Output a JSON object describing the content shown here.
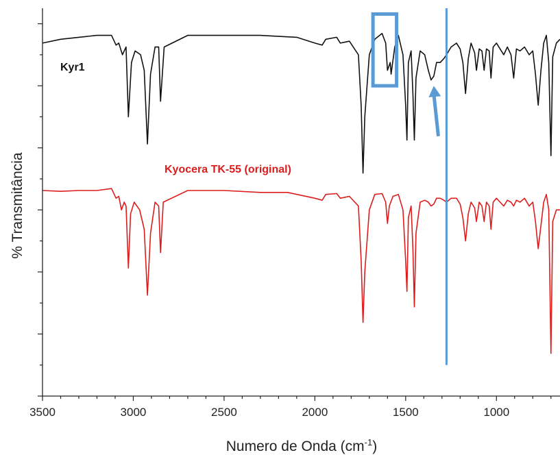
{
  "chart_data": {
    "type": "line",
    "title": "",
    "xlabel": "Numero de Onda (cm",
    "xlabel_sup": "-1",
    "xlabel_tail": ")",
    "ylabel": "% Transmitância",
    "xlim": [
      3500,
      650
    ],
    "x_reversed": true,
    "ylim": [
      0,
      1
    ],
    "y_tick_labels_shown": false,
    "x_ticks": [
      3500,
      3000,
      2500,
      2000,
      1500,
      1000
    ],
    "x_tick_labels": [
      "3500",
      "3000",
      "2500",
      "2000",
      "1500",
      "1000"
    ],
    "grid": false,
    "colors": {
      "kyr1": "#111111",
      "tk55": "#dd1c1c",
      "annotation": "#5b9bd5"
    },
    "series": [
      {
        "name": "Kyr1",
        "color": "#111111",
        "baseline": 0.93,
        "points": [
          [
            3500,
            0.91
          ],
          [
            3400,
            0.92
          ],
          [
            3300,
            0.925
          ],
          [
            3200,
            0.93
          ],
          [
            3120,
            0.93
          ],
          [
            3095,
            0.905
          ],
          [
            3080,
            0.91
          ],
          [
            3060,
            0.88
          ],
          [
            3040,
            0.9
          ],
          [
            3027,
            0.72
          ],
          [
            3010,
            0.86
          ],
          [
            2990,
            0.89
          ],
          [
            2960,
            0.88
          ],
          [
            2940,
            0.84
          ],
          [
            2922,
            0.65
          ],
          [
            2905,
            0.83
          ],
          [
            2880,
            0.9
          ],
          [
            2860,
            0.9
          ],
          [
            2850,
            0.76
          ],
          [
            2830,
            0.9
          ],
          [
            2700,
            0.93
          ],
          [
            2500,
            0.93
          ],
          [
            2300,
            0.93
          ],
          [
            2100,
            0.925
          ],
          [
            2000,
            0.91
          ],
          [
            1960,
            0.905
          ],
          [
            1940,
            0.92
          ],
          [
            1880,
            0.925
          ],
          [
            1860,
            0.91
          ],
          [
            1810,
            0.915
          ],
          [
            1760,
            0.88
          ],
          [
            1745,
            0.75
          ],
          [
            1735,
            0.575
          ],
          [
            1725,
            0.72
          ],
          [
            1700,
            0.88
          ],
          [
            1670,
            0.92
          ],
          [
            1630,
            0.935
          ],
          [
            1610,
            0.91
          ],
          [
            1600,
            0.84
          ],
          [
            1585,
            0.86
          ],
          [
            1580,
            0.83
          ],
          [
            1560,
            0.9
          ],
          [
            1540,
            0.93
          ],
          [
            1515,
            0.88
          ],
          [
            1500,
            0.75
          ],
          [
            1493,
            0.66
          ],
          [
            1485,
            0.86
          ],
          [
            1470,
            0.89
          ],
          [
            1460,
            0.78
          ],
          [
            1452,
            0.66
          ],
          [
            1443,
            0.82
          ],
          [
            1420,
            0.89
          ],
          [
            1395,
            0.88
          ],
          [
            1375,
            0.84
          ],
          [
            1360,
            0.815
          ],
          [
            1345,
            0.825
          ],
          [
            1330,
            0.86
          ],
          [
            1310,
            0.86
          ],
          [
            1290,
            0.87
          ],
          [
            1275,
            0.88
          ],
          [
            1250,
            0.9
          ],
          [
            1220,
            0.91
          ],
          [
            1200,
            0.895
          ],
          [
            1185,
            0.86
          ],
          [
            1170,
            0.78
          ],
          [
            1155,
            0.87
          ],
          [
            1140,
            0.91
          ],
          [
            1120,
            0.885
          ],
          [
            1110,
            0.84
          ],
          [
            1095,
            0.895
          ],
          [
            1080,
            0.89
          ],
          [
            1068,
            0.84
          ],
          [
            1055,
            0.895
          ],
          [
            1040,
            0.89
          ],
          [
            1030,
            0.82
          ],
          [
            1018,
            0.9
          ],
          [
            1000,
            0.91
          ],
          [
            980,
            0.895
          ],
          [
            960,
            0.88
          ],
          [
            940,
            0.9
          ],
          [
            920,
            0.88
          ],
          [
            905,
            0.82
          ],
          [
            890,
            0.895
          ],
          [
            870,
            0.89
          ],
          [
            845,
            0.9
          ],
          [
            820,
            0.88
          ],
          [
            800,
            0.89
          ],
          [
            785,
            0.83
          ],
          [
            770,
            0.75
          ],
          [
            755,
            0.84
          ],
          [
            740,
            0.91
          ],
          [
            725,
            0.93
          ],
          [
            712,
            0.86
          ],
          [
            700,
            0.62
          ],
          [
            690,
            0.875
          ],
          [
            670,
            0.91
          ],
          [
            650,
            0.92
          ]
        ]
      },
      {
        "name": "Kyocera TK-55 (original)",
        "color": "#dd1c1c",
        "baseline": 0.53,
        "points": [
          [
            3500,
            0.53
          ],
          [
            3400,
            0.528
          ],
          [
            3300,
            0.53
          ],
          [
            3200,
            0.53
          ],
          [
            3120,
            0.535
          ],
          [
            3095,
            0.51
          ],
          [
            3080,
            0.515
          ],
          [
            3065,
            0.48
          ],
          [
            3050,
            0.5
          ],
          [
            3040,
            0.49
          ],
          [
            3027,
            0.33
          ],
          [
            3015,
            0.47
          ],
          [
            2995,
            0.5
          ],
          [
            2965,
            0.48
          ],
          [
            2940,
            0.43
          ],
          [
            2922,
            0.26
          ],
          [
            2905,
            0.42
          ],
          [
            2880,
            0.5
          ],
          [
            2860,
            0.49
          ],
          [
            2850,
            0.37
          ],
          [
            2835,
            0.5
          ],
          [
            2700,
            0.53
          ],
          [
            2500,
            0.53
          ],
          [
            2300,
            0.525
          ],
          [
            2150,
            0.525
          ],
          [
            2000,
            0.51
          ],
          [
            1960,
            0.505
          ],
          [
            1940,
            0.52
          ],
          [
            1880,
            0.522
          ],
          [
            1860,
            0.51
          ],
          [
            1810,
            0.515
          ],
          [
            1760,
            0.49
          ],
          [
            1745,
            0.35
          ],
          [
            1735,
            0.19
          ],
          [
            1725,
            0.32
          ],
          [
            1700,
            0.48
          ],
          [
            1670,
            0.52
          ],
          [
            1630,
            0.522
          ],
          [
            1610,
            0.5
          ],
          [
            1600,
            0.445
          ],
          [
            1590,
            0.49
          ],
          [
            1570,
            0.515
          ],
          [
            1540,
            0.52
          ],
          [
            1515,
            0.48
          ],
          [
            1500,
            0.35
          ],
          [
            1493,
            0.27
          ],
          [
            1485,
            0.46
          ],
          [
            1470,
            0.49
          ],
          [
            1460,
            0.38
          ],
          [
            1452,
            0.23
          ],
          [
            1443,
            0.42
          ],
          [
            1420,
            0.5
          ],
          [
            1395,
            0.505
          ],
          [
            1375,
            0.5
          ],
          [
            1360,
            0.49
          ],
          [
            1345,
            0.495
          ],
          [
            1330,
            0.51
          ],
          [
            1310,
            0.51
          ],
          [
            1290,
            0.505
          ],
          [
            1275,
            0.5
          ],
          [
            1250,
            0.51
          ],
          [
            1220,
            0.51
          ],
          [
            1200,
            0.495
          ],
          [
            1185,
            0.46
          ],
          [
            1170,
            0.4
          ],
          [
            1155,
            0.47
          ],
          [
            1140,
            0.5
          ],
          [
            1120,
            0.485
          ],
          [
            1110,
            0.45
          ],
          [
            1095,
            0.5
          ],
          [
            1080,
            0.49
          ],
          [
            1068,
            0.45
          ],
          [
            1055,
            0.5
          ],
          [
            1040,
            0.49
          ],
          [
            1030,
            0.43
          ],
          [
            1018,
            0.5
          ],
          [
            1000,
            0.51
          ],
          [
            980,
            0.5
          ],
          [
            960,
            0.49
          ],
          [
            940,
            0.505
          ],
          [
            920,
            0.5
          ],
          [
            905,
            0.49
          ],
          [
            890,
            0.505
          ],
          [
            870,
            0.5
          ],
          [
            845,
            0.51
          ],
          [
            820,
            0.49
          ],
          [
            800,
            0.5
          ],
          [
            785,
            0.45
          ],
          [
            770,
            0.38
          ],
          [
            755,
            0.44
          ],
          [
            740,
            0.5
          ],
          [
            725,
            0.52
          ],
          [
            712,
            0.48
          ],
          [
            700,
            0.11
          ],
          [
            690,
            0.45
          ],
          [
            670,
            0.48
          ],
          [
            650,
            0.48
          ]
        ]
      }
    ],
    "annotations": {
      "highlight_box_x": [
        1680,
        1550
      ],
      "highlight_box_y": [
        0.8,
        0.985
      ],
      "arrow_from": [
        1320,
        0.67
      ],
      "arrow_to": [
        1345,
        0.8
      ],
      "vertical_line_x": 1275,
      "vertical_line_y": [
        0.08,
        1.0
      ]
    }
  }
}
